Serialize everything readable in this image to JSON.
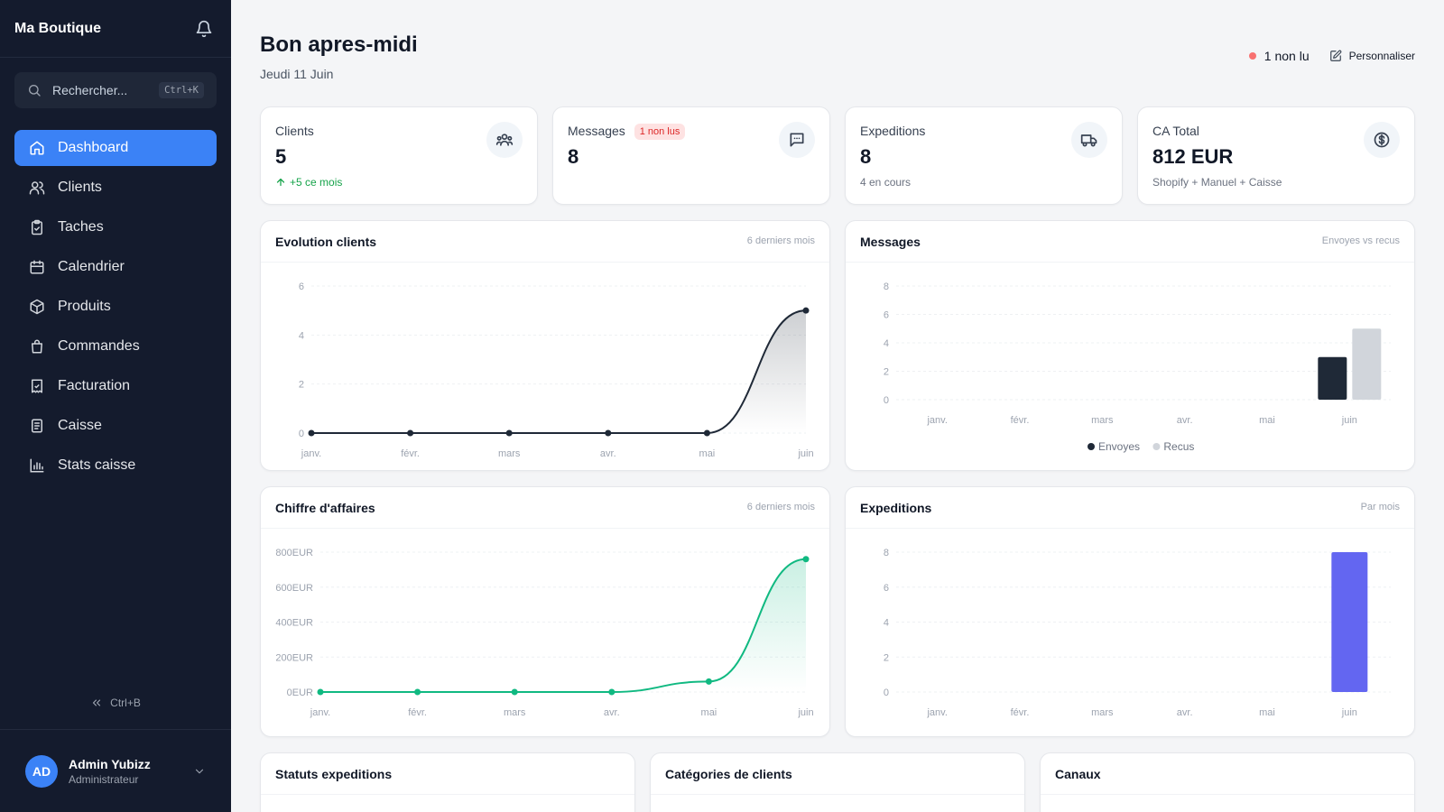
{
  "sidebar": {
    "brand": "Ma Boutique",
    "search_placeholder": "Rechercher...",
    "search_shortcut": "Ctrl+K",
    "items": [
      {
        "label": "Dashboard",
        "icon": "home-icon",
        "active": true
      },
      {
        "label": "Clients",
        "icon": "users-icon"
      },
      {
        "label": "Taches",
        "icon": "clipboard-icon"
      },
      {
        "label": "Calendrier",
        "icon": "calendar-icon"
      },
      {
        "label": "Produits",
        "icon": "box-icon"
      },
      {
        "label": "Commandes",
        "icon": "shopping-bag-icon"
      },
      {
        "label": "Facturation",
        "icon": "receipt-icon"
      },
      {
        "label": "Caisse",
        "icon": "register-icon"
      },
      {
        "label": "Stats caisse",
        "icon": "bar-chart-icon"
      }
    ],
    "collapse_shortcut": "Ctrl+B",
    "user": {
      "initials": "AD",
      "name": "Admin Yubizz",
      "role": "Administrateur"
    }
  },
  "header": {
    "greeting": "Bon apres-midi",
    "date": "Jeudi 11 Juin",
    "unread": "1 non lu",
    "customize": "Personnaliser"
  },
  "stats": [
    {
      "label": "Clients",
      "value": "5",
      "sub": "+5 ce mois",
      "icon": "users-icon"
    },
    {
      "label": "Messages",
      "badge": "1 non lus",
      "value": "8",
      "icon": "message-icon"
    },
    {
      "label": "Expeditions",
      "value": "8",
      "sub": "4 en cours",
      "icon": "truck-icon"
    },
    {
      "label": "CA Total",
      "value": "812 EUR",
      "sub": "Shopify + Manuel + Caisse",
      "icon": "dollar-icon"
    }
  ],
  "colors": {
    "accent": "#3b82f6",
    "sidebar": "#141b2d",
    "green": "#10b981",
    "violet": "#6366f1",
    "dark": "#1f2937",
    "light_gray": "#d1d5db"
  },
  "charts": {
    "clients": {
      "title": "Evolution clients",
      "meta": "6 derniers mois"
    },
    "messages": {
      "title": "Messages",
      "meta": "Envoyes vs recus"
    },
    "revenue": {
      "title": "Chiffre d'affaires",
      "meta": "6 derniers mois"
    },
    "shipments": {
      "title": "Expeditions",
      "meta": "Par mois"
    }
  },
  "bottom_cards": {
    "statuses": "Statuts expeditions",
    "categories": "Catégories de clients",
    "channels": "Canaux"
  },
  "chart_data": [
    {
      "type": "line",
      "title": "Evolution clients",
      "categories": [
        "janv.",
        "févr.",
        "mars",
        "avr.",
        "mai",
        "juin"
      ],
      "values": [
        0,
        0,
        0,
        0,
        0,
        5
      ],
      "ylim": [
        0,
        6
      ],
      "yticks": [
        0,
        2,
        4,
        6
      ],
      "color": "#1f2937"
    },
    {
      "type": "bar",
      "title": "Messages",
      "categories": [
        "janv.",
        "févr.",
        "mars",
        "avr.",
        "mai",
        "juin"
      ],
      "series": [
        {
          "name": "Envoyes",
          "values": [
            0,
            0,
            0,
            0,
            0,
            3
          ],
          "color": "#1f2937"
        },
        {
          "name": "Recus",
          "values": [
            0,
            0,
            0,
            0,
            0,
            5
          ],
          "color": "#d1d5db"
        }
      ],
      "ylim": [
        0,
        8
      ],
      "yticks": [
        0,
        2,
        4,
        6,
        8
      ],
      "legend": "bottom"
    },
    {
      "type": "line",
      "title": "Chiffre d'affaires",
      "categories": [
        "janv.",
        "févr.",
        "mars",
        "avr.",
        "mai",
        "juin"
      ],
      "values": [
        0,
        0,
        0,
        0,
        60,
        760
      ],
      "ylim": [
        0,
        800
      ],
      "yticks": [
        0,
        200,
        400,
        600,
        800
      ],
      "ytick_labels": [
        "0EUR",
        "200EUR",
        "400EUR",
        "600EUR",
        "800EUR"
      ],
      "color": "#10b981"
    },
    {
      "type": "bar",
      "title": "Expeditions",
      "categories": [
        "janv.",
        "févr.",
        "mars",
        "avr.",
        "mai",
        "juin"
      ],
      "values": [
        0,
        0,
        0,
        0,
        0,
        8
      ],
      "ylim": [
        0,
        8
      ],
      "yticks": [
        0,
        2,
        4,
        6,
        8
      ],
      "color": "#6366f1"
    }
  ]
}
